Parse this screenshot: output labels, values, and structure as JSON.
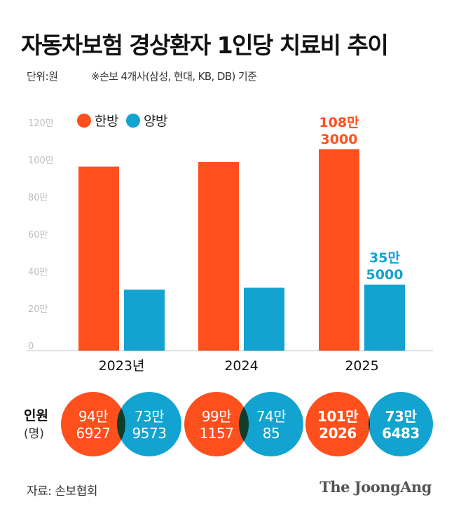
{
  "header": {
    "title": "자동차보험 경상환자 1인당 치료비 추이",
    "unit": "단위:원",
    "note": "※손보 4개사(삼성, 현대, KB, DB) 기준"
  },
  "colors": {
    "korean_medicine": "#ff4f1c",
    "western_medicine": "#13a3d0",
    "overlap": "#0f3d2a",
    "axis": "#bbbbbb",
    "tick_text": "#bdbdbd"
  },
  "chart_data": {
    "type": "bar",
    "categories": [
      "2023년",
      "2024",
      "2025"
    ],
    "series": [
      {
        "name": "한방",
        "values": [
          99.0,
          101.5,
          108.3
        ]
      },
      {
        "name": "양방",
        "values": [
          32.8,
          33.8,
          35.5
        ]
      }
    ],
    "ylim": [
      0,
      120
    ],
    "yticks": [
      {
        "value": 0,
        "label": "0"
      },
      {
        "value": 20,
        "label": "20만"
      },
      {
        "value": 40,
        "label": "40만"
      },
      {
        "value": 60,
        "label": "60만"
      },
      {
        "value": 80,
        "label": "80만"
      },
      {
        "value": 100,
        "label": "100만"
      },
      {
        "value": 120,
        "label": "120만"
      }
    ],
    "annotations": [
      {
        "category": "2025",
        "series": "한방",
        "line1": "108만",
        "line2": "3000"
      },
      {
        "category": "2025",
        "series": "양방",
        "line1": "35만",
        "line2": "5000"
      }
    ],
    "legend_position": "top-left"
  },
  "people": {
    "title": "인원",
    "subtitle": "(명)",
    "groups": [
      {
        "year": "2023년",
        "korean": [
          "94만",
          "6927"
        ],
        "western": [
          "73만",
          "9573"
        ],
        "bold": false
      },
      {
        "year": "2024",
        "korean": [
          "99만",
          "1157"
        ],
        "western": [
          "74만",
          "85"
        ],
        "bold": false
      },
      {
        "year": "2025",
        "korean": [
          "101만",
          "2026"
        ],
        "western": [
          "73만",
          "6483"
        ],
        "bold": true
      }
    ]
  },
  "footer": {
    "source": "자료: 손보협회",
    "logo": "The JoongAng"
  }
}
